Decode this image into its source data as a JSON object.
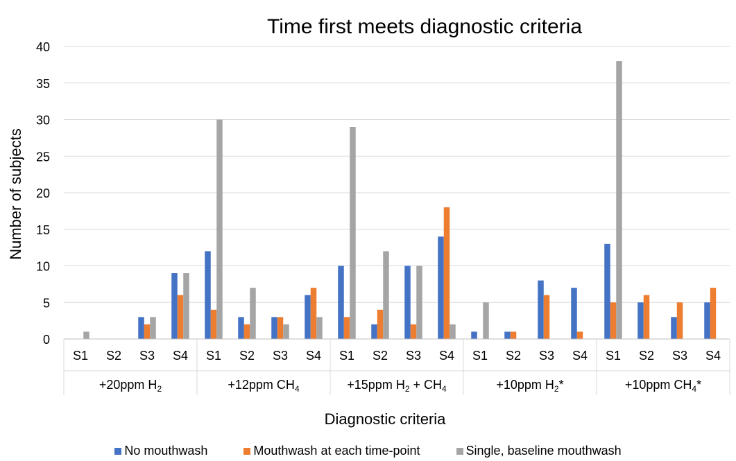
{
  "chart_data": {
    "type": "bar",
    "title": "Time first meets diagnostic criteria",
    "xlabel": "Diagnostic criteria",
    "ylabel": "Number of subjects",
    "ylim": [
      0,
      40
    ],
    "yticks": [
      0,
      5,
      10,
      15,
      20,
      25,
      30,
      35,
      40
    ],
    "grid": true,
    "legend_position": "bottom",
    "groups": [
      {
        "label": "+20ppm H",
        "sub": "2",
        "suffix": ""
      },
      {
        "label": "+12ppm CH",
        "sub": "4",
        "suffix": ""
      },
      {
        "label": "+15ppm H",
        "sub": "2",
        "mid": " + CH",
        "sub2": "4",
        "suffix": ""
      },
      {
        "label": "+10ppm H",
        "sub": "2",
        "suffix": "*"
      },
      {
        "label": "+10ppm CH",
        "sub": "4",
        "suffix": "*"
      }
    ],
    "group_labels": [
      "+20ppm H2",
      "+12ppm CH4",
      "+15ppm H2 + CH4",
      "+10ppm H2*",
      "+10ppm CH4*"
    ],
    "subcategories": [
      "S1",
      "S2",
      "S3",
      "S4"
    ],
    "series": [
      {
        "name": "No mouthwash",
        "color": "#4472C4",
        "values": [
          0,
          0,
          3,
          9,
          12,
          3,
          3,
          6,
          10,
          2,
          10,
          14,
          1,
          1,
          8,
          7,
          13,
          5,
          3,
          5
        ]
      },
      {
        "name": "Mouthwash at each time-point",
        "color": "#ED7D31",
        "values": [
          0,
          0,
          2,
          6,
          4,
          2,
          3,
          7,
          3,
          4,
          2,
          18,
          0,
          1,
          6,
          1,
          5,
          6,
          5,
          7
        ]
      },
      {
        "name": "Single, baseline mouthwash",
        "color": "#A5A5A5",
        "values": [
          1,
          0,
          3,
          9,
          30,
          7,
          2,
          3,
          29,
          12,
          10,
          2,
          5,
          0,
          0,
          0,
          38,
          0,
          0,
          0
        ]
      }
    ]
  }
}
